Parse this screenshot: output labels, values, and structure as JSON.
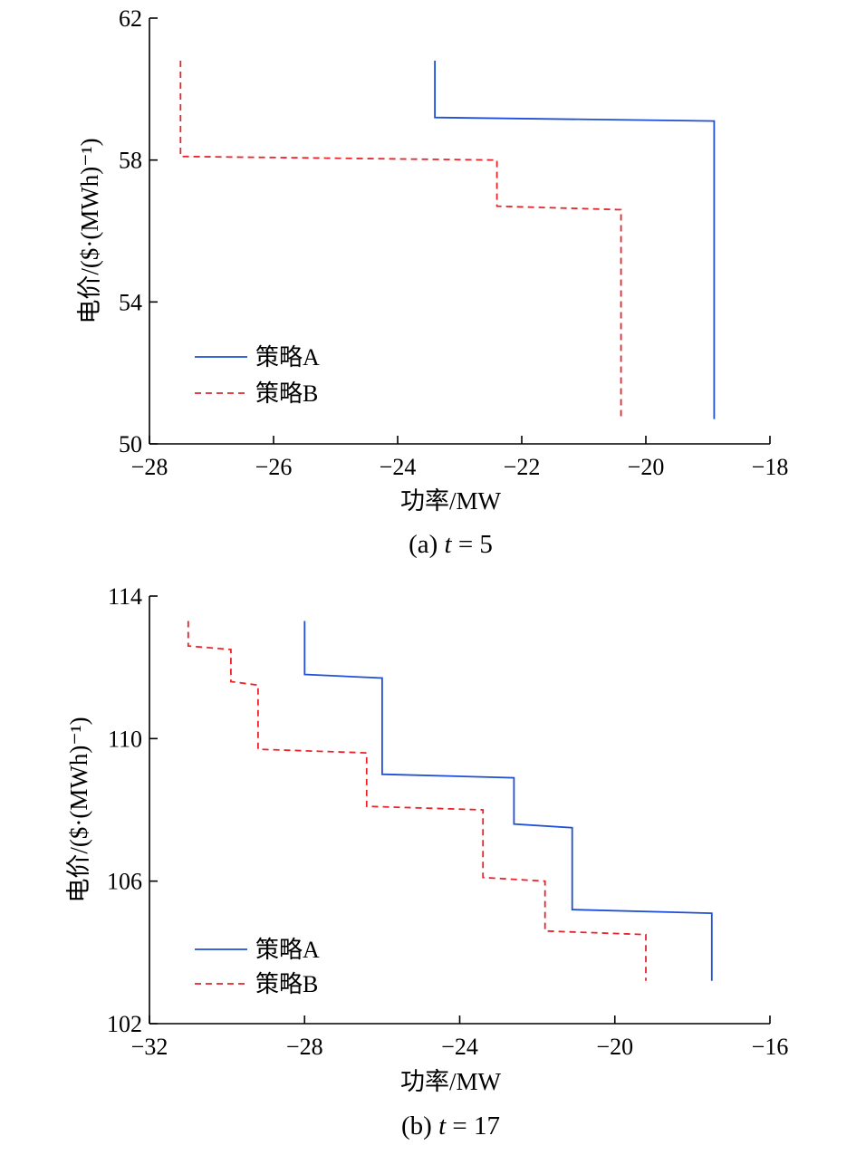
{
  "chart_data": [
    {
      "type": "line",
      "caption": "(a) t = 5",
      "caption_prefix": "(a) ",
      "caption_var": "t",
      "caption_rest": " = 5",
      "xlabel": "功率/MW",
      "ylabel": "电价/($·(MWh)⁻¹)",
      "xlim": [
        -28,
        -18
      ],
      "ylim": [
        50,
        62
      ],
      "xticks": [
        -28,
        -26,
        -24,
        -22,
        -20,
        -18
      ],
      "yticks": [
        50,
        54,
        58,
        62
      ],
      "xtick_labels": [
        "−28",
        "−26",
        "−24",
        "−22",
        "−20",
        "−18"
      ],
      "ytick_labels": [
        "50",
        "54",
        "58",
        "62"
      ],
      "grid": false,
      "legend_position": "bottom-left",
      "series": [
        {
          "name": "策略A",
          "color": "#1f4fd6",
          "dash": "solid",
          "x": [
            -23.4,
            -23.4,
            -18.9,
            -18.9
          ],
          "y": [
            60.8,
            59.2,
            59.1,
            50.7
          ]
        },
        {
          "name": "策略B",
          "color": "#e8242b",
          "dash": "dashed",
          "x": [
            -27.5,
            -27.5,
            -22.4,
            -22.4,
            -20.4,
            -20.4
          ],
          "y": [
            60.8,
            58.1,
            58.0,
            56.7,
            56.6,
            50.7
          ]
        }
      ]
    },
    {
      "type": "line",
      "caption": "(b) t = 17",
      "caption_prefix": "(b) ",
      "caption_var": "t",
      "caption_rest": " = 17",
      "xlabel": "功率/MW",
      "ylabel": "电价/($·(MWh)⁻¹)",
      "xlim": [
        -32,
        -16
      ],
      "ylim": [
        102,
        114
      ],
      "xticks": [
        -32,
        -28,
        -24,
        -20,
        -16
      ],
      "yticks": [
        102,
        106,
        110,
        114
      ],
      "xtick_labels": [
        "−32",
        "−28",
        "−24",
        "−20",
        "−16"
      ],
      "ytick_labels": [
        "102",
        "106",
        "110",
        "114"
      ],
      "grid": false,
      "legend_position": "bottom-left",
      "series": [
        {
          "name": "策略A",
          "color": "#1f4fd6",
          "dash": "solid",
          "x": [
            -28.0,
            -28.0,
            -26.0,
            -26.0,
            -22.6,
            -22.6,
            -21.1,
            -21.1,
            -17.5,
            -17.5
          ],
          "y": [
            113.3,
            111.8,
            111.7,
            109.0,
            108.9,
            107.6,
            107.5,
            105.2,
            105.1,
            103.2
          ]
        },
        {
          "name": "策略B",
          "color": "#e8242b",
          "dash": "dashed",
          "x": [
            -31.0,
            -31.0,
            -29.9,
            -29.9,
            -29.2,
            -29.2,
            -26.4,
            -26.4,
            -23.4,
            -23.4,
            -21.8,
            -21.8,
            -19.2,
            -19.2
          ],
          "y": [
            113.3,
            112.6,
            112.5,
            111.6,
            111.5,
            109.7,
            109.6,
            108.1,
            108.0,
            106.1,
            106.0,
            104.6,
            104.5,
            103.2
          ]
        }
      ]
    }
  ]
}
